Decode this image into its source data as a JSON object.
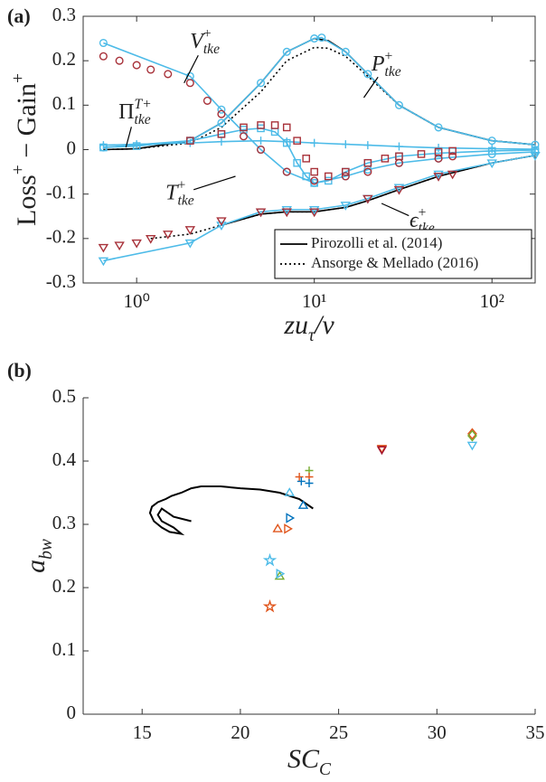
{
  "chart_data": [
    {
      "type": "line",
      "panel_label": "(a)",
      "xscale": "log",
      "box": true,
      "y_label": [
        {
          "text": "Loss"
        },
        {
          "text": "+",
          "pos": "sup"
        },
        {
          "text": " − Gain"
        },
        {
          "text": "+",
          "pos": "sup"
        }
      ],
      "x_label": [
        {
          "text": "zu",
          "style": "italic"
        },
        {
          "text": "τ",
          "pos": "sub",
          "style": "italic"
        },
        {
          "text": "/ν",
          "style": "italic"
        }
      ],
      "xlim": [
        0.5,
        175
      ],
      "ylim": [
        -0.3,
        0.3
      ],
      "xticks": [
        {
          "value": 1,
          "label": "10⁰"
        },
        {
          "value": 10,
          "label": "10¹"
        },
        {
          "value": 100,
          "label": "10²"
        }
      ],
      "yticks": [
        -0.3,
        -0.2,
        -0.1,
        0,
        0.1,
        0.2,
        0.3
      ],
      "legend": "lower right",
      "series": [
        {
          "name": "Pirozolli et al. (2014)",
          "color": "#000000",
          "line": "solid",
          "marker": "none",
          "x": [
            0.65,
            1,
            2,
            3,
            5,
            7,
            10,
            12,
            15,
            20,
            30,
            50,
            100,
            175
          ],
          "values": [
            0,
            0.002,
            0.02,
            0.06,
            0.15,
            0.22,
            0.25,
            0.245,
            0.22,
            0.17,
            0.1,
            0.05,
            0.02,
            0.011
          ]
        },
        {
          "name": "Ansorge & Mellado (2016)",
          "color": "#000000",
          "line": "dotted",
          "marker": "none",
          "x": [
            0.65,
            1,
            2,
            3,
            5,
            7,
            10,
            12,
            15,
            20,
            30,
            50,
            100,
            175
          ],
          "values": [
            0,
            0.002,
            0.015,
            0.05,
            0.13,
            0.2,
            0.23,
            0.228,
            0.21,
            0.165,
            0.1,
            0.05,
            0.02,
            0.011
          ]
        },
        {
          "color": "#000000",
          "line": "solid",
          "marker": "none",
          "x": [
            3,
            5,
            7,
            10,
            15,
            20,
            30,
            50,
            100,
            175
          ],
          "values": [
            -0.17,
            -0.145,
            -0.14,
            -0.14,
            -0.13,
            -0.115,
            -0.09,
            -0.06,
            -0.03,
            -0.013
          ]
        },
        {
          "color": "#000000",
          "line": "dotted",
          "marker": "none",
          "x": [
            1.2,
            2,
            3,
            5,
            7,
            10,
            15,
            20,
            30,
            50,
            100,
            175
          ],
          "values": [
            -0.2,
            -0.19,
            -0.17,
            -0.145,
            -0.14,
            -0.14,
            -0.13,
            -0.115,
            -0.09,
            -0.06,
            -0.03,
            -0.013
          ]
        },
        {
          "color": "#4dbbe8",
          "line": "solid",
          "marker": "circle",
          "x": [
            0.65,
            2,
            3,
            5,
            7,
            10,
            11,
            15,
            20,
            30,
            50,
            100,
            175
          ],
          "values": [
            0.005,
            0.02,
            0.06,
            0.15,
            0.22,
            0.25,
            0.252,
            0.22,
            0.17,
            0.1,
            0.05,
            0.02,
            0.011
          ]
        },
        {
          "color": "#4dbbe8",
          "line": "solid",
          "marker": "triangle-down",
          "x": [
            0.65,
            2,
            3,
            5,
            7,
            10,
            15,
            20,
            30,
            50,
            100,
            175
          ],
          "values": [
            -0.25,
            -0.21,
            -0.17,
            -0.14,
            -0.135,
            -0.135,
            -0.125,
            -0.11,
            -0.085,
            -0.055,
            -0.03,
            -0.013
          ]
        },
        {
          "color": "#4dbbe8",
          "line": "solid",
          "marker": "circle",
          "x": [
            0.65,
            2,
            3,
            5,
            7,
            10,
            15,
            20,
            30,
            50,
            100,
            175
          ],
          "values": [
            0.24,
            0.165,
            0.09,
            0.0,
            -0.05,
            -0.075,
            -0.06,
            -0.045,
            -0.03,
            -0.02,
            -0.01,
            -0.005
          ]
        },
        {
          "color": "#4dbbe8",
          "line": "solid",
          "marker": "square",
          "x": [
            0.65,
            1,
            2,
            3,
            4,
            5,
            6,
            7,
            8,
            9,
            10,
            12,
            15,
            20,
            30,
            50,
            100,
            175
          ],
          "values": [
            0.005,
            0.008,
            0.02,
            0.035,
            0.045,
            0.048,
            0.04,
            0.015,
            -0.03,
            -0.06,
            -0.075,
            -0.07,
            -0.05,
            -0.03,
            -0.015,
            -0.008,
            -0.003,
            -0.001
          ]
        },
        {
          "color": "#4dbbe8",
          "line": "solid",
          "marker": "plus",
          "x": [
            0.65,
            1,
            2,
            3,
            5,
            7,
            10,
            15,
            20,
            30,
            50,
            100,
            175
          ],
          "values": [
            0.01,
            0.012,
            0.015,
            0.018,
            0.02,
            0.018,
            0.015,
            0.012,
            0.01,
            0.007,
            0.004,
            0.002,
            0.001
          ]
        },
        {
          "color": "#a8323a",
          "line": "none",
          "marker": "circle",
          "x": [
            0.65,
            0.8,
            1,
            1.2,
            1.5,
            2,
            2.5,
            3,
            4,
            5,
            7,
            10,
            15,
            20,
            30,
            50,
            60
          ],
          "values": [
            0.21,
            0.2,
            0.19,
            0.18,
            0.17,
            0.15,
            0.11,
            0.08,
            0.03,
            0,
            -0.05,
            -0.07,
            -0.06,
            -0.05,
            -0.03,
            -0.02,
            -0.015
          ]
        },
        {
          "color": "#a8323a",
          "line": "none",
          "marker": "triangle-down",
          "x": [
            0.65,
            0.8,
            1,
            1.2,
            1.5,
            2,
            3,
            5,
            7,
            10,
            20,
            30,
            50,
            60
          ],
          "values": [
            -0.22,
            -0.215,
            -0.21,
            -0.2,
            -0.19,
            -0.18,
            -0.16,
            -0.14,
            -0.14,
            -0.14,
            -0.11,
            -0.09,
            -0.06,
            -0.055
          ]
        },
        {
          "color": "#a8323a",
          "line": "none",
          "marker": "square",
          "x": [
            2,
            3,
            4,
            5,
            6,
            7,
            8,
            9,
            10,
            12,
            15,
            20,
            25,
            30,
            40,
            50,
            60
          ],
          "values": [
            0.02,
            0.035,
            0.05,
            0.055,
            0.055,
            0.05,
            0.02,
            -0.02,
            -0.05,
            -0.06,
            -0.05,
            -0.03,
            -0.02,
            -0.015,
            -0.01,
            -0.005,
            -0.003
          ]
        }
      ],
      "annotations": [
        {
          "parts": [
            {
              "text": "V",
              "style": "italic"
            },
            {
              "text": "+",
              "pos": "sup"
            },
            {
              "text": "tke",
              "pos": "sub",
              "style": "italic"
            }
          ],
          "x": 2.42,
          "y": 0.241,
          "ax": 1.85,
          "ay": 0.15
        },
        {
          "parts": [
            {
              "text": "Π"
            },
            {
              "text": "T+",
              "pos": "sup",
              "style": "italic"
            },
            {
              "text": "tke",
              "pos": "sub",
              "style": "italic"
            }
          ],
          "x": 0.98,
          "y": 0.082,
          "ax": 0.87,
          "ay": 0.005
        },
        {
          "parts": [
            {
              "text": "P",
              "style": "italic"
            },
            {
              "text": "+",
              "pos": "sup"
            },
            {
              "text": "tke",
              "pos": "sub",
              "style": "italic"
            }
          ],
          "x": 25.4,
          "y": 0.19,
          "ax": 19,
          "ay": 0.117
        },
        {
          "parts": [
            {
              "text": "T",
              "style": "italic"
            },
            {
              "text": "+",
              "pos": "sup"
            },
            {
              "text": "tke",
              "pos": "sub",
              "style": "italic"
            }
          ],
          "x": 1.75,
          "y": -0.1,
          "ax": 3.6,
          "ay": -0.06
        },
        {
          "parts": [
            {
              "text": "ϵ",
              "style": "italic"
            },
            {
              "text": "+",
              "pos": "sup"
            },
            {
              "text": "tke",
              "pos": "sub",
              "style": "italic"
            }
          ],
          "x": 40.4,
          "y": -0.162,
          "ax": 23.9,
          "ay": -0.121
        }
      ]
    },
    {
      "type": "scatter",
      "panel_label": "(b)",
      "xscale": "linear",
      "box": false,
      "y_label": [
        {
          "text": "a",
          "style": "italic"
        },
        {
          "text": "bw",
          "pos": "sub",
          "style": "italic"
        }
      ],
      "x_label": [
        {
          "text": "SC",
          "style": "italic"
        },
        {
          "text": "C",
          "pos": "sub",
          "style": "italic"
        }
      ],
      "xlim": [
        12,
        35
      ],
      "ylim": [
        0,
        0.5
      ],
      "xticks": [
        15,
        20,
        25,
        30,
        35
      ],
      "yticks": [
        0,
        0.1,
        0.2,
        0.3,
        0.4,
        0.5
      ],
      "series": [
        {
          "color": "#000000",
          "line": "solid",
          "marker": "none",
          "x": [
            23.7,
            23.0,
            22.0,
            21.0,
            20.0,
            19.0,
            18.0,
            17.5,
            17.0,
            16.5,
            16.2,
            15.8,
            15.5,
            15.4,
            15.6,
            16.0,
            16.4,
            17.0,
            16.6,
            16.0,
            15.8,
            16.0,
            16.6,
            17.5
          ],
          "values": [
            0.325,
            0.34,
            0.35,
            0.355,
            0.357,
            0.36,
            0.36,
            0.357,
            0.35,
            0.345,
            0.34,
            0.335,
            0.328,
            0.318,
            0.305,
            0.295,
            0.288,
            0.285,
            0.295,
            0.305,
            0.315,
            0.325,
            0.312,
            0.305
          ]
        },
        {
          "color": "#4dbbe8",
          "line": "none",
          "marker": "star",
          "x": [
            21.5
          ],
          "values": [
            0.243
          ]
        },
        {
          "color": "#e0561d",
          "line": "none",
          "marker": "star",
          "x": [
            21.5
          ],
          "values": [
            0.17
          ]
        },
        {
          "color": "#e0561d",
          "line": "none",
          "marker": "triangle-up",
          "x": [
            21.9
          ],
          "values": [
            0.293
          ]
        },
        {
          "color": "#e0561d",
          "line": "none",
          "marker": "triangle-right",
          "x": [
            22.4
          ],
          "values": [
            0.293
          ]
        },
        {
          "color": "#77ac30",
          "line": "none",
          "marker": "triangle-up",
          "x": [
            22.0
          ],
          "values": [
            0.218
          ]
        },
        {
          "color": "#4dbbe8",
          "line": "none",
          "marker": "triangle-right",
          "x": [
            22.0
          ],
          "values": [
            0.222
          ]
        },
        {
          "color": "#0072bd",
          "line": "none",
          "marker": "triangle-right",
          "x": [
            22.5
          ],
          "values": [
            0.31
          ]
        },
        {
          "color": "#4dbbe8",
          "line": "none",
          "marker": "triangle-up",
          "x": [
            22.5
          ],
          "values": [
            0.35
          ]
        },
        {
          "color": "#0072bd",
          "line": "none",
          "marker": "triangle-up",
          "x": [
            23.2
          ],
          "values": [
            0.33
          ]
        },
        {
          "color": "#e0561d",
          "line": "none",
          "marker": "plus",
          "x": [
            23.0
          ],
          "values": [
            0.375
          ]
        },
        {
          "color": "#0072bd",
          "line": "none",
          "marker": "plus",
          "x": [
            23.1
          ],
          "values": [
            0.368
          ]
        },
        {
          "color": "#77ac30",
          "line": "none",
          "marker": "plus",
          "x": [
            23.5
          ],
          "values": [
            0.385
          ]
        },
        {
          "color": "#e0561d",
          "line": "none",
          "marker": "plus",
          "x": [
            23.5
          ],
          "values": [
            0.375
          ]
        },
        {
          "color": "#0072bd",
          "line": "none",
          "marker": "plus",
          "x": [
            23.5
          ],
          "values": [
            0.365
          ]
        },
        {
          "color": "#e0561d",
          "line": "none",
          "marker": "triangle-down",
          "x": [
            27.2
          ],
          "values": [
            0.42
          ]
        },
        {
          "color": "#a2142f",
          "line": "none",
          "marker": "triangle-down",
          "x": [
            27.2
          ],
          "values": [
            0.418
          ]
        },
        {
          "color": "#e0561d",
          "line": "none",
          "marker": "diamond",
          "x": [
            31.8
          ],
          "values": [
            0.443
          ]
        },
        {
          "color": "#77ac30",
          "line": "none",
          "marker": "diamond",
          "x": [
            31.8
          ],
          "values": [
            0.44
          ]
        },
        {
          "color": "#4dbbe8",
          "line": "none",
          "marker": "triangle-down",
          "x": [
            31.8
          ],
          "values": [
            0.425
          ]
        }
      ]
    }
  ]
}
